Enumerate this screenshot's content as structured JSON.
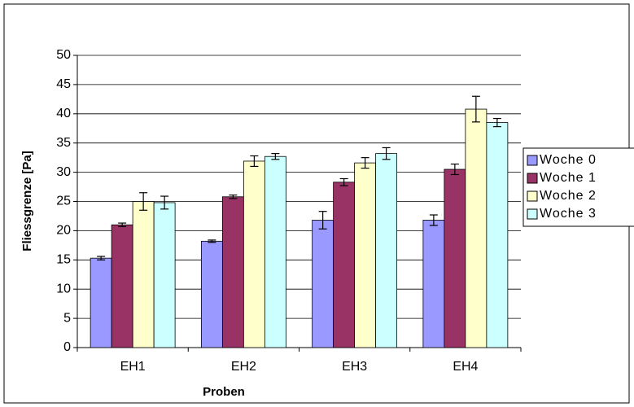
{
  "chart_data": {
    "type": "bar",
    "categories": [
      "EH1",
      "EH2",
      "EH3",
      "EH4"
    ],
    "series": [
      {
        "name": "Woche 0",
        "color": "#9999ff",
        "values": [
          15.3,
          18.2,
          21.8,
          21.8
        ],
        "errors": [
          0.3,
          0.2,
          1.5,
          0.9
        ]
      },
      {
        "name": "Woche 1",
        "color": "#993366",
        "values": [
          21,
          25.8,
          28.3,
          30.5
        ],
        "errors": [
          0.3,
          0.3,
          0.6,
          0.9
        ]
      },
      {
        "name": "Woche 2",
        "color": "#ffffcc",
        "values": [
          25,
          31.9,
          31.6,
          40.8
        ],
        "errors": [
          1.5,
          0.9,
          0.9,
          2.2
        ]
      },
      {
        "name": "Woche 3",
        "color": "#ccffff",
        "values": [
          24.8,
          32.7,
          33.2,
          38.5
        ],
        "errors": [
          1.1,
          0.5,
          1.0,
          0.7
        ]
      }
    ],
    "x_label": "Proben",
    "y_label": "Fliessgrenze [Pa]",
    "ylim": [
      0,
      50
    ],
    "yticks": [
      0,
      5,
      10,
      15,
      20,
      25,
      30,
      35,
      40,
      45,
      50
    ],
    "grid": true,
    "legend": "right"
  }
}
